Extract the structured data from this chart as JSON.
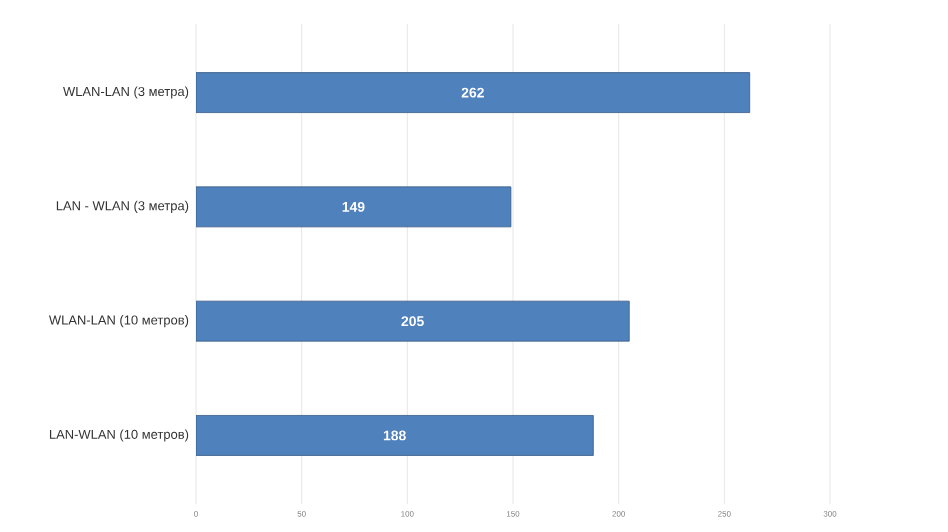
{
  "chart_data": {
    "type": "bar",
    "orientation": "horizontal",
    "categories": [
      "WLAN-LAN (3 метра)",
      "LAN - WLAN (3 метра)",
      "WLAN-LAN (10 метров)",
      "LAN-WLAN (10 метров)"
    ],
    "values": [
      262,
      149,
      205,
      188
    ],
    "color": "#4f81bd",
    "xlim": [
      0,
      300
    ],
    "xticks": [
      0,
      50,
      100,
      150,
      200,
      250,
      300
    ],
    "grid": "x",
    "data_labels": true
  }
}
